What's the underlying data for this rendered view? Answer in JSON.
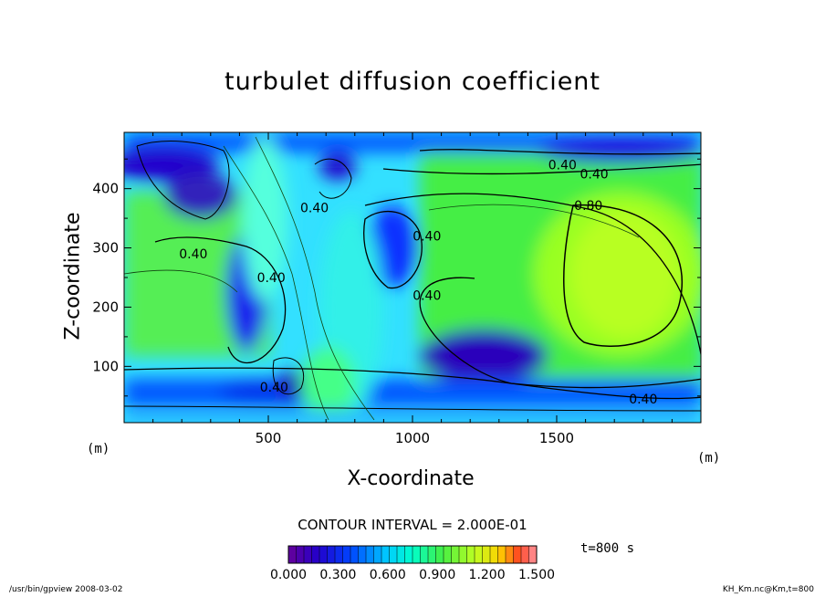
{
  "chart_data": {
    "type": "heatmap",
    "title": "turbulet diffusion coefficient",
    "xlabel": "X-coordinate",
    "ylabel": "Z-coordinate",
    "x_unit": "(m)",
    "y_unit": "(m)",
    "xlim": [
      0,
      2000
    ],
    "ylim": [
      5,
      495
    ],
    "x_ticks": [
      500,
      1000,
      1500
    ],
    "y_ticks": [
      100,
      200,
      300,
      400
    ],
    "contour_interval_label": "CONTOUR INTERVAL = 2.000E-01",
    "contour_labels": [
      {
        "text": "0.40",
        "x": 1520,
        "z": 440
      },
      {
        "text": "0.40",
        "x": 1630,
        "z": 425
      },
      {
        "text": "0.80",
        "x": 1610,
        "z": 372
      },
      {
        "text": "0.40",
        "x": 660,
        "z": 368
      },
      {
        "text": "0.40",
        "x": 1050,
        "z": 320
      },
      {
        "text": "0.40",
        "x": 240,
        "z": 290
      },
      {
        "text": "0.40",
        "x": 510,
        "z": 250
      },
      {
        "text": "0.40",
        "x": 1050,
        "z": 220
      },
      {
        "text": "0.40",
        "x": 520,
        "z": 65
      },
      {
        "text": "0.40",
        "x": 1800,
        "z": 45
      }
    ],
    "colorbar": {
      "min": 0.0,
      "max": 1.5,
      "tick_labels": [
        "0.000",
        "0.300",
        "0.600",
        "0.900",
        "1.200",
        "1.500"
      ]
    },
    "grid": false
  },
  "annotations": {
    "time": "t=800 s",
    "footer_left": "/usr/bin/gpview   2008-03-02",
    "footer_right": "KH_Km.nc@Km,t=800"
  }
}
